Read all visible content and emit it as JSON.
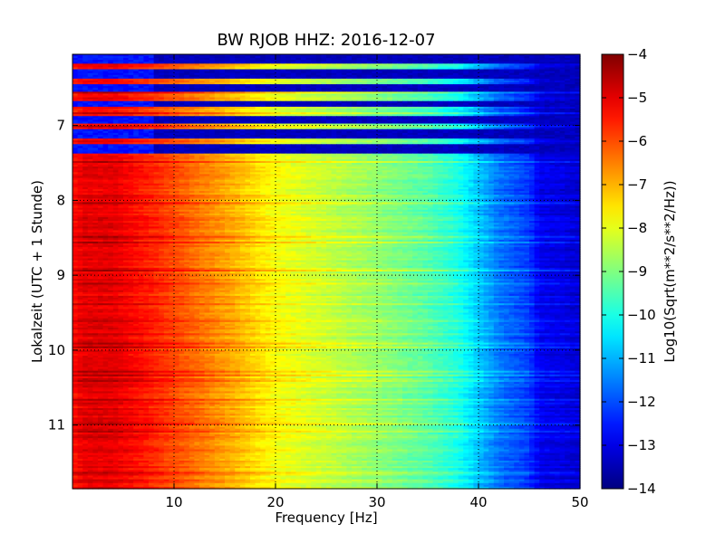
{
  "chart_data": {
    "type": "heatmap",
    "title": "BW RJOB HHZ: 2016-12-07",
    "xlabel": "Frequency [Hz]",
    "ylabel": "Lokalzeit (UTC + 1 Stunde)",
    "colorbar_label": "Log10(Sqrt(m**2/s**2/Hz))",
    "xlim": [
      0,
      50
    ],
    "ylim": [
      11.85,
      6.05
    ],
    "y_inverted": true,
    "x_ticks": [
      10,
      20,
      30,
      40,
      50
    ],
    "y_ticks": [
      7,
      8,
      9,
      10,
      11
    ],
    "color_range": [
      -14,
      -4
    ],
    "colorbar_ticks": [
      -4,
      -5,
      -6,
      -7,
      -8,
      -9,
      -10,
      -11,
      -12,
      -13,
      -14
    ],
    "colormap": "jet",
    "grid": true,
    "grid_style": "dotted",
    "gap_period": {
      "start": 6.05,
      "end": 7.43,
      "description_source": "alternating blank (dark blue) rows"
    },
    "spectrum_profile": {
      "frequency_hz": [
        0,
        1,
        4,
        8,
        12,
        16,
        20,
        25,
        30,
        35,
        38,
        40,
        42,
        44,
        45,
        46,
        48,
        50
      ],
      "log_psd": [
        -5.4,
        -5.0,
        -5.0,
        -5.6,
        -6.3,
        -7.0,
        -7.8,
        -8.3,
        -8.8,
        -9.4,
        -10.0,
        -10.8,
        -11.6,
        -12.0,
        -12.2,
        -12.9,
        -13.0,
        -13.2
      ]
    }
  }
}
